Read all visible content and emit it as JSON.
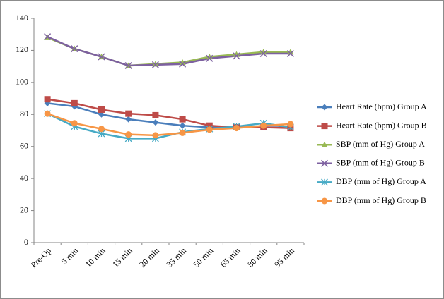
{
  "chart_data": {
    "type": "line",
    "categories": [
      "Pre-Op",
      "5 min",
      "10 min",
      "15 min",
      "20 min",
      "35 min",
      "50 min",
      "65 min",
      "80 min",
      "95 min"
    ],
    "series": [
      {
        "name": "Heart Rate (bpm) Group A",
        "color": "#4a7ebb",
        "marker": "diamond",
        "values": [
          87,
          85,
          80,
          77,
          75,
          73,
          72,
          72,
          72,
          72
        ]
      },
      {
        "name": "Heart Rate (bpm) Group B",
        "color": "#be4b48",
        "marker": "square",
        "values": [
          89.5,
          87,
          83,
          80.5,
          79.5,
          77,
          73,
          72,
          72,
          71.5
        ]
      },
      {
        "name": "SBP (mm of Hg) Group A",
        "color": "#98b954",
        "marker": "triangle",
        "values": [
          128,
          121,
          116,
          110.5,
          111.5,
          112.5,
          116,
          117.5,
          119,
          119
        ]
      },
      {
        "name": "SBP (mm of Hg) Group B",
        "color": "#7d60a0",
        "marker": "x",
        "values": [
          128.5,
          121,
          116,
          110.5,
          111,
          111.5,
          115,
          116.5,
          118,
          118
        ]
      },
      {
        "name": "DBP (mm of Hg) Group A",
        "color": "#46aac5",
        "marker": "asterisk",
        "values": [
          80.5,
          72.5,
          68,
          65,
          65,
          69,
          71,
          72.5,
          74.5,
          72
        ]
      },
      {
        "name": "DBP (mm of Hg) Group B",
        "color": "#f79646",
        "marker": "circle",
        "values": [
          80.5,
          74.5,
          71,
          67.5,
          67,
          68.5,
          70.5,
          71.5,
          73,
          74
        ]
      }
    ],
    "ylim": [
      0,
      140
    ],
    "yticks": [
      0,
      20,
      40,
      60,
      80,
      100,
      120,
      140
    ],
    "grid": false,
    "legend": "right"
  }
}
